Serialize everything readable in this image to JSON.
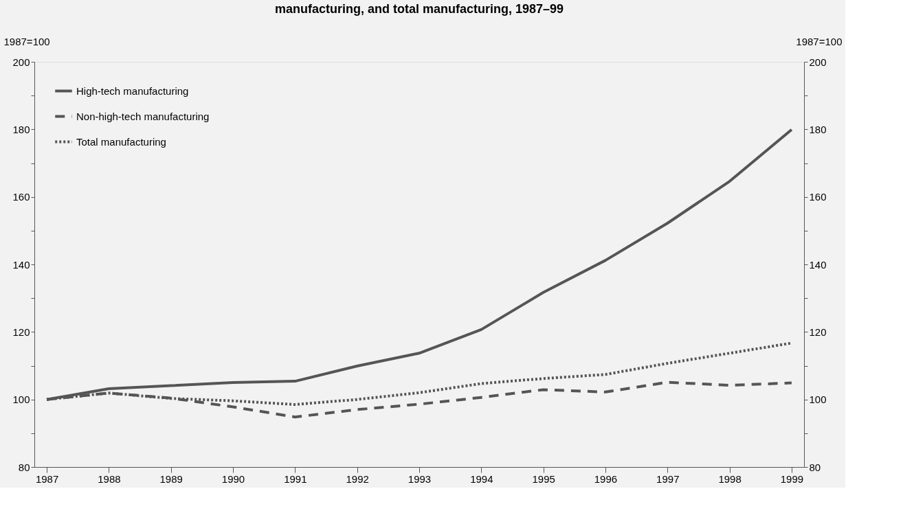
{
  "chart_data": {
    "type": "line",
    "title": "manufacturing, and total manufacturing, 1987–99",
    "ylabel": "1987=100",
    "y2label": "1987=100",
    "x": [
      1987,
      1988,
      1989,
      1990,
      1991,
      1992,
      1993,
      1994,
      1995,
      1996,
      1997,
      1998,
      1999
    ],
    "series": [
      {
        "name": "High-tech manufacturing",
        "color": "#555555",
        "line_style": "solid",
        "values": [
          100,
          103.2,
          104.1,
          105,
          105.4,
          109.9,
          113.7,
          120.7,
          131.7,
          141.2,
          152.2,
          164.6,
          179.9
        ]
      },
      {
        "name": "Non-high-tech manufacturing",
        "color": "#555555",
        "line_style": "dashed",
        "values": [
          100,
          101.9,
          100.4,
          97.8,
          94.8,
          97,
          98.6,
          100.6,
          102.9,
          102.2,
          105.1,
          104.2,
          104.9
        ]
      },
      {
        "name": "Total manufacturing",
        "color": "#555555",
        "line_style": "dotted",
        "values": [
          100,
          101.9,
          100.3,
          99.6,
          98.5,
          100,
          102,
          104.7,
          106.2,
          107.4,
          110.7,
          113.7,
          116.7
        ]
      }
    ],
    "xlim": [
      1986.8,
      1999.2
    ],
    "xticks": [
      1987,
      1988,
      1989,
      1990,
      1991,
      1992,
      1993,
      1994,
      1995,
      1996,
      1997,
      1998,
      1999
    ],
    "ylim": [
      80,
      200
    ],
    "yticks": [
      80,
      {
        "value": 90,
        "label": null
      },
      100,
      {
        "value": 110,
        "label": null
      },
      120,
      {
        "value": 130,
        "label": null
      },
      140,
      {
        "value": 150,
        "label": null
      },
      160,
      {
        "value": 170,
        "label": null
      },
      180,
      {
        "value": 190,
        "label": null
      },
      200
    ],
    "y2lim": [
      80,
      200
    ],
    "y2ticks": [
      80,
      {
        "value": 90,
        "label": null
      },
      100,
      {
        "value": 110,
        "label": null
      },
      120,
      {
        "value": 130,
        "label": null
      },
      140,
      {
        "value": 150,
        "label": null
      },
      160,
      {
        "value": 170,
        "label": null
      },
      180,
      {
        "value": 190,
        "label": null
      },
      200
    ],
    "legend": "top left",
    "grid": false
  }
}
